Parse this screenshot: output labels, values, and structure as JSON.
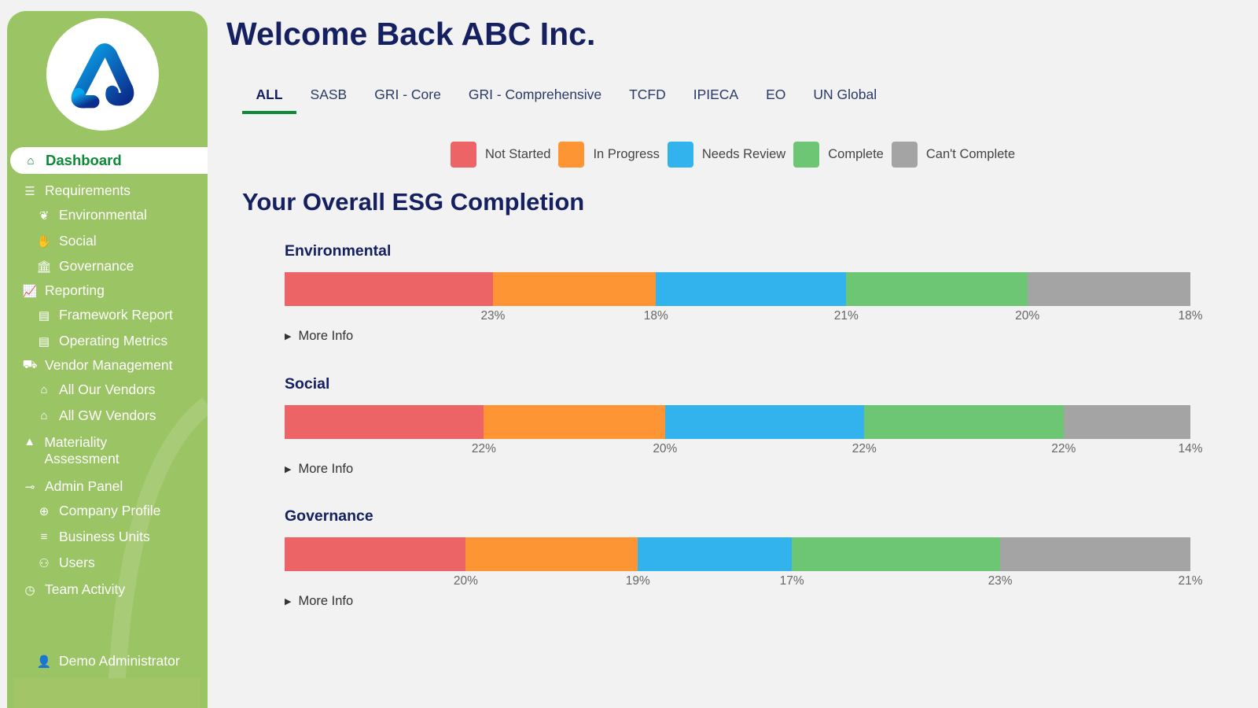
{
  "header": {
    "title": "Welcome Back ABC Inc."
  },
  "tabs": [
    "ALL",
    "SASB",
    "GRI - Core",
    "GRI - Comprehensive",
    "TCFD",
    "IPIECA",
    "EO",
    "UN Global"
  ],
  "selected_tab": "ALL",
  "colors": {
    "sidebar": "#9bc464",
    "accent": "#0c8a37",
    "title": "#152060"
  },
  "legend": [
    {
      "label": "Not Started",
      "color": "#ec6465"
    },
    {
      "label": "In Progress",
      "color": "#fd9535"
    },
    {
      "label": "Needs Review",
      "color": "#33b3ee"
    },
    {
      "label": "Complete",
      "color": "#6dc674"
    },
    {
      "label": "Can't Complete",
      "color": "#a4a4a4"
    }
  ],
  "section_title": "Your Overall ESG Completion",
  "chart_data": {
    "type": "bar",
    "stacked": true,
    "orientation": "horizontal",
    "series_names": [
      "Not Started",
      "In Progress",
      "Needs Review",
      "Complete",
      "Can't Complete"
    ],
    "categories": [
      "Environmental",
      "Social",
      "Governance"
    ],
    "values": [
      [
        23,
        18,
        21,
        20,
        18
      ],
      [
        22,
        20,
        22,
        22,
        14
      ],
      [
        20,
        19,
        17,
        23,
        21
      ]
    ],
    "labels": [
      [
        "23%",
        "18%",
        "21%",
        "20%",
        "18%"
      ],
      [
        "22%",
        "20%",
        "22%",
        "22%",
        "14%"
      ],
      [
        "20%",
        "19%",
        "17%",
        "23%",
        "21%"
      ]
    ]
  },
  "more_info": "More Info",
  "sidebar": {
    "items": [
      {
        "label": "Dashboard",
        "icon": "home-icon",
        "glyph": "⌂"
      },
      {
        "label": "Requirements",
        "icon": "checklist-icon",
        "glyph": "☰"
      },
      {
        "label": "Environmental",
        "icon": "leaf-icon",
        "glyph": "❦"
      },
      {
        "label": "Social",
        "icon": "handshake-icon",
        "glyph": "✋"
      },
      {
        "label": "Governance",
        "icon": "bank-icon",
        "glyph": "🏛"
      },
      {
        "label": "Reporting",
        "icon": "chart-line-icon",
        "glyph": "📈"
      },
      {
        "label": "Framework Report",
        "icon": "document-icon",
        "glyph": "▤"
      },
      {
        "label": "Operating Metrics",
        "icon": "document-icon",
        "glyph": "▤"
      },
      {
        "label": "Vendor Management",
        "icon": "truck-icon",
        "glyph": "⛟"
      },
      {
        "label": "All Our Vendors",
        "icon": "store-icon",
        "glyph": "⌂"
      },
      {
        "label": "All GW Vendors",
        "icon": "store-icon",
        "glyph": "⌂"
      },
      {
        "label": "Materiality Assessment",
        "icon": "tree-icon",
        "glyph": "▲"
      },
      {
        "label": "Admin Panel",
        "icon": "key-icon",
        "glyph": "⊸"
      },
      {
        "label": "Company Profile",
        "icon": "globe-icon",
        "glyph": "⊕"
      },
      {
        "label": "Business Units",
        "icon": "list-icon",
        "glyph": "≡"
      },
      {
        "label": "Users",
        "icon": "users-icon",
        "glyph": "⚇"
      },
      {
        "label": "Team Activity",
        "icon": "clock-icon",
        "glyph": "◷"
      }
    ],
    "user": "Demo Administrator"
  }
}
